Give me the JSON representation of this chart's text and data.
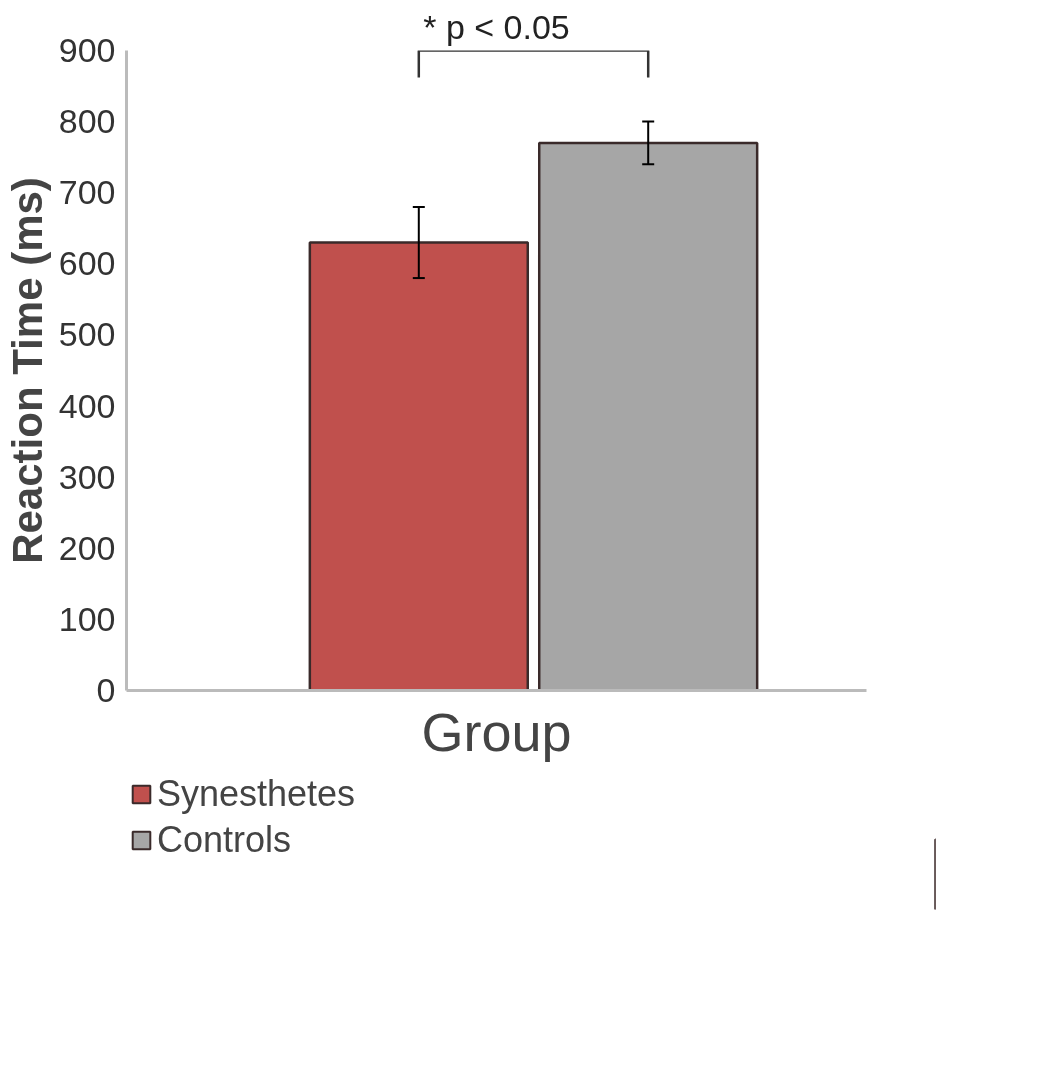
{
  "chart_data": {
    "type": "bar",
    "categories": [
      null
    ],
    "xlabel": "Group",
    "ylabel": "Reaction Time (ms)",
    "series": [
      {
        "name": "Synesthetes",
        "color": "#c0504d",
        "values": [
          630
        ],
        "errors": [
          50
        ]
      },
      {
        "name": "Controls",
        "color": "#a6a6a6",
        "values": [
          770
        ],
        "errors": [
          30
        ]
      }
    ],
    "ylim": [
      0,
      900
    ],
    "yticks": [
      0,
      100,
      200,
      300,
      400,
      500,
      600,
      700,
      800,
      900
    ],
    "grid": false,
    "legend": "bottom left",
    "annotations": [
      "* p < 0.05"
    ]
  }
}
